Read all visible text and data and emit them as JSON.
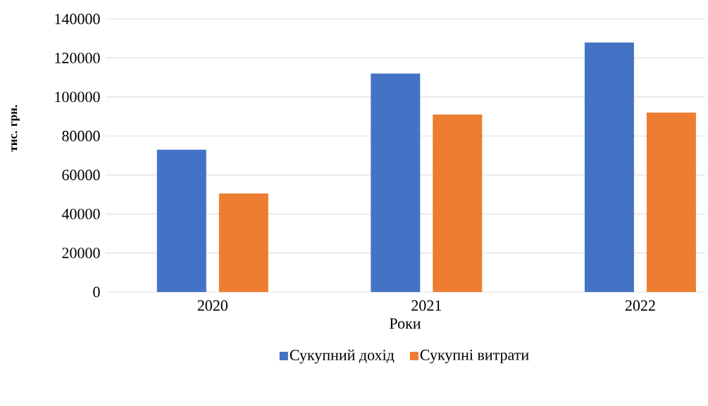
{
  "chart_data": {
    "type": "bar",
    "xlabel": "Роки",
    "ylabel": "тис. грн.",
    "categories": [
      "2020",
      "2021",
      "2022"
    ],
    "series": [
      {
        "name": "Сукупний дохід",
        "color": "#4472c4",
        "values": [
          73000,
          112000,
          128000
        ]
      },
      {
        "name": "Сукупні витрати",
        "color": "#ed7d31",
        "values": [
          50500,
          91000,
          92000
        ]
      }
    ],
    "ylim": [
      0,
      140000
    ],
    "yticks": [
      0,
      20000,
      40000,
      60000,
      80000,
      100000,
      120000,
      140000
    ],
    "grid": "y",
    "legend": "bottom"
  }
}
